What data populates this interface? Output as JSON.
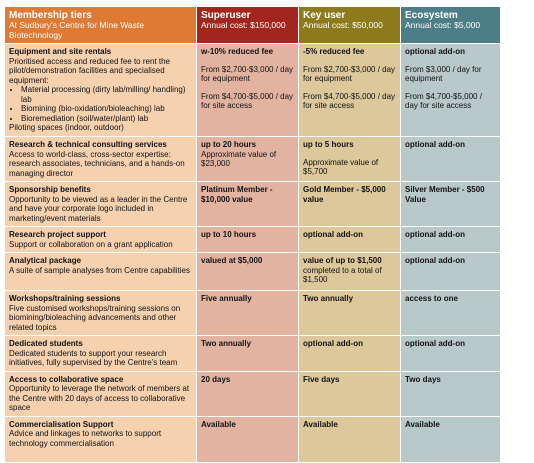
{
  "header": [
    {
      "title": "Membership tiers",
      "subtitle": "At Sudbury's Centre for Mine Waste Biotechnology"
    },
    {
      "title": "Superuser",
      "subtitle": "Annual cost: $150,000"
    },
    {
      "title": "Key user",
      "subtitle": "Annual cost: $50,000"
    },
    {
      "title": "Ecosystem",
      "subtitle": "Annual cost: $5,000"
    }
  ],
  "rows": [
    {
      "label": {
        "title": "Equipment and site rentals",
        "text": "Prioritised access and reduced fee to rent the pilot/demonstration facilities and specialised equipment:",
        "bullets": [
          "Material processing (dirty lab/milling/ handling) lab",
          "Biomining (bio-oxidation/bioleaching) lab",
          "Bioremediation (soil/water/plant) lab"
        ],
        "after": "Piloting spaces (indoor, outdoor)"
      },
      "cells": [
        {
          "title": "w-10% reduced fee",
          "paragraphs": [
            "From $2,700-$3,000 / day for equipment",
            "From $4,700-$5,000 / day for site access"
          ]
        },
        {
          "title": "-5% reduced fee",
          "paragraphs": [
            "From $2,700-$3,000 / day for equipment",
            "From $4,700-$5,000 / day for site access"
          ]
        },
        {
          "title": "optional add-on",
          "paragraphs": [
            "From $3,000 / day for equipment",
            "From $4,700-$5,000 / day for site access"
          ]
        }
      ]
    },
    {
      "label": {
        "title": "Research & technical consulting services",
        "text": "Access to world-class, cross-sector expertise: research associates, technicians, and a hands-on managing director"
      },
      "cells": [
        {
          "title": "up to 20 hours",
          "text": "Approximate value of $23,000"
        },
        {
          "title": "up to 5 hours",
          "paragraphs": [
            "Approximate value of $5,700"
          ]
        },
        {
          "title": "optional add-on"
        }
      ]
    },
    {
      "label": {
        "title": "Sponsorship benefits",
        "text": "Opportunity to be viewed as a leader in the Centre and have your corporate logo included in marketing/event materials"
      },
      "cells": [
        {
          "title": "Platinum Member - $10,000 value"
        },
        {
          "title": "Gold Member - $5,000 value"
        },
        {
          "title": "Silver Member - $500 Value"
        }
      ]
    },
    {
      "label": {
        "title": "Research project support",
        "text": "Support or collaboration on a grant application"
      },
      "cells": [
        {
          "title": "up to 10 hours"
        },
        {
          "title": "optional add-on"
        },
        {
          "title": "optional add-on"
        }
      ]
    },
    {
      "label": {
        "title": "Analytical package",
        "text": "A suite of sample analyses from Centre capabilities"
      },
      "cells": [
        {
          "title": "valued at $5,000"
        },
        {
          "title": "value of up to $1,500",
          "text": "completed to a total of $1,500"
        },
        {
          "title": "optional add-on"
        }
      ]
    },
    {
      "label": {
        "title": "Workshops/training sessions",
        "text": "Five customised workshops/training sessions on biomining/bioleaching advancements and other related topics"
      },
      "cells": [
        {
          "title": "Five annually"
        },
        {
          "title": "Two annually"
        },
        {
          "title": "access to one"
        }
      ]
    },
    {
      "label": {
        "title": "Dedicated students",
        "text": "Dedicated students to support your research initiatives, fully supervised by the Centre's team"
      },
      "cells": [
        {
          "title": "Two annually"
        },
        {
          "title": "optional add-on"
        },
        {
          "title": "optional add-on"
        }
      ]
    },
    {
      "label": {
        "title": "Access to collaborative space",
        "text": "Opportunity to leverage the network of members at the Centre with 20 days of access to collaborative space"
      },
      "cells": [
        {
          "title": "20 days"
        },
        {
          "title": "Five days"
        },
        {
          "title": "Two days"
        }
      ]
    },
    {
      "label": {
        "title": "Commercialisation Support",
        "text": "Advice and linkages to networks to support technology commercialisation"
      },
      "cells": [
        {
          "title": "Available"
        },
        {
          "title": "Available"
        },
        {
          "title": "Available"
        }
      ]
    }
  ]
}
